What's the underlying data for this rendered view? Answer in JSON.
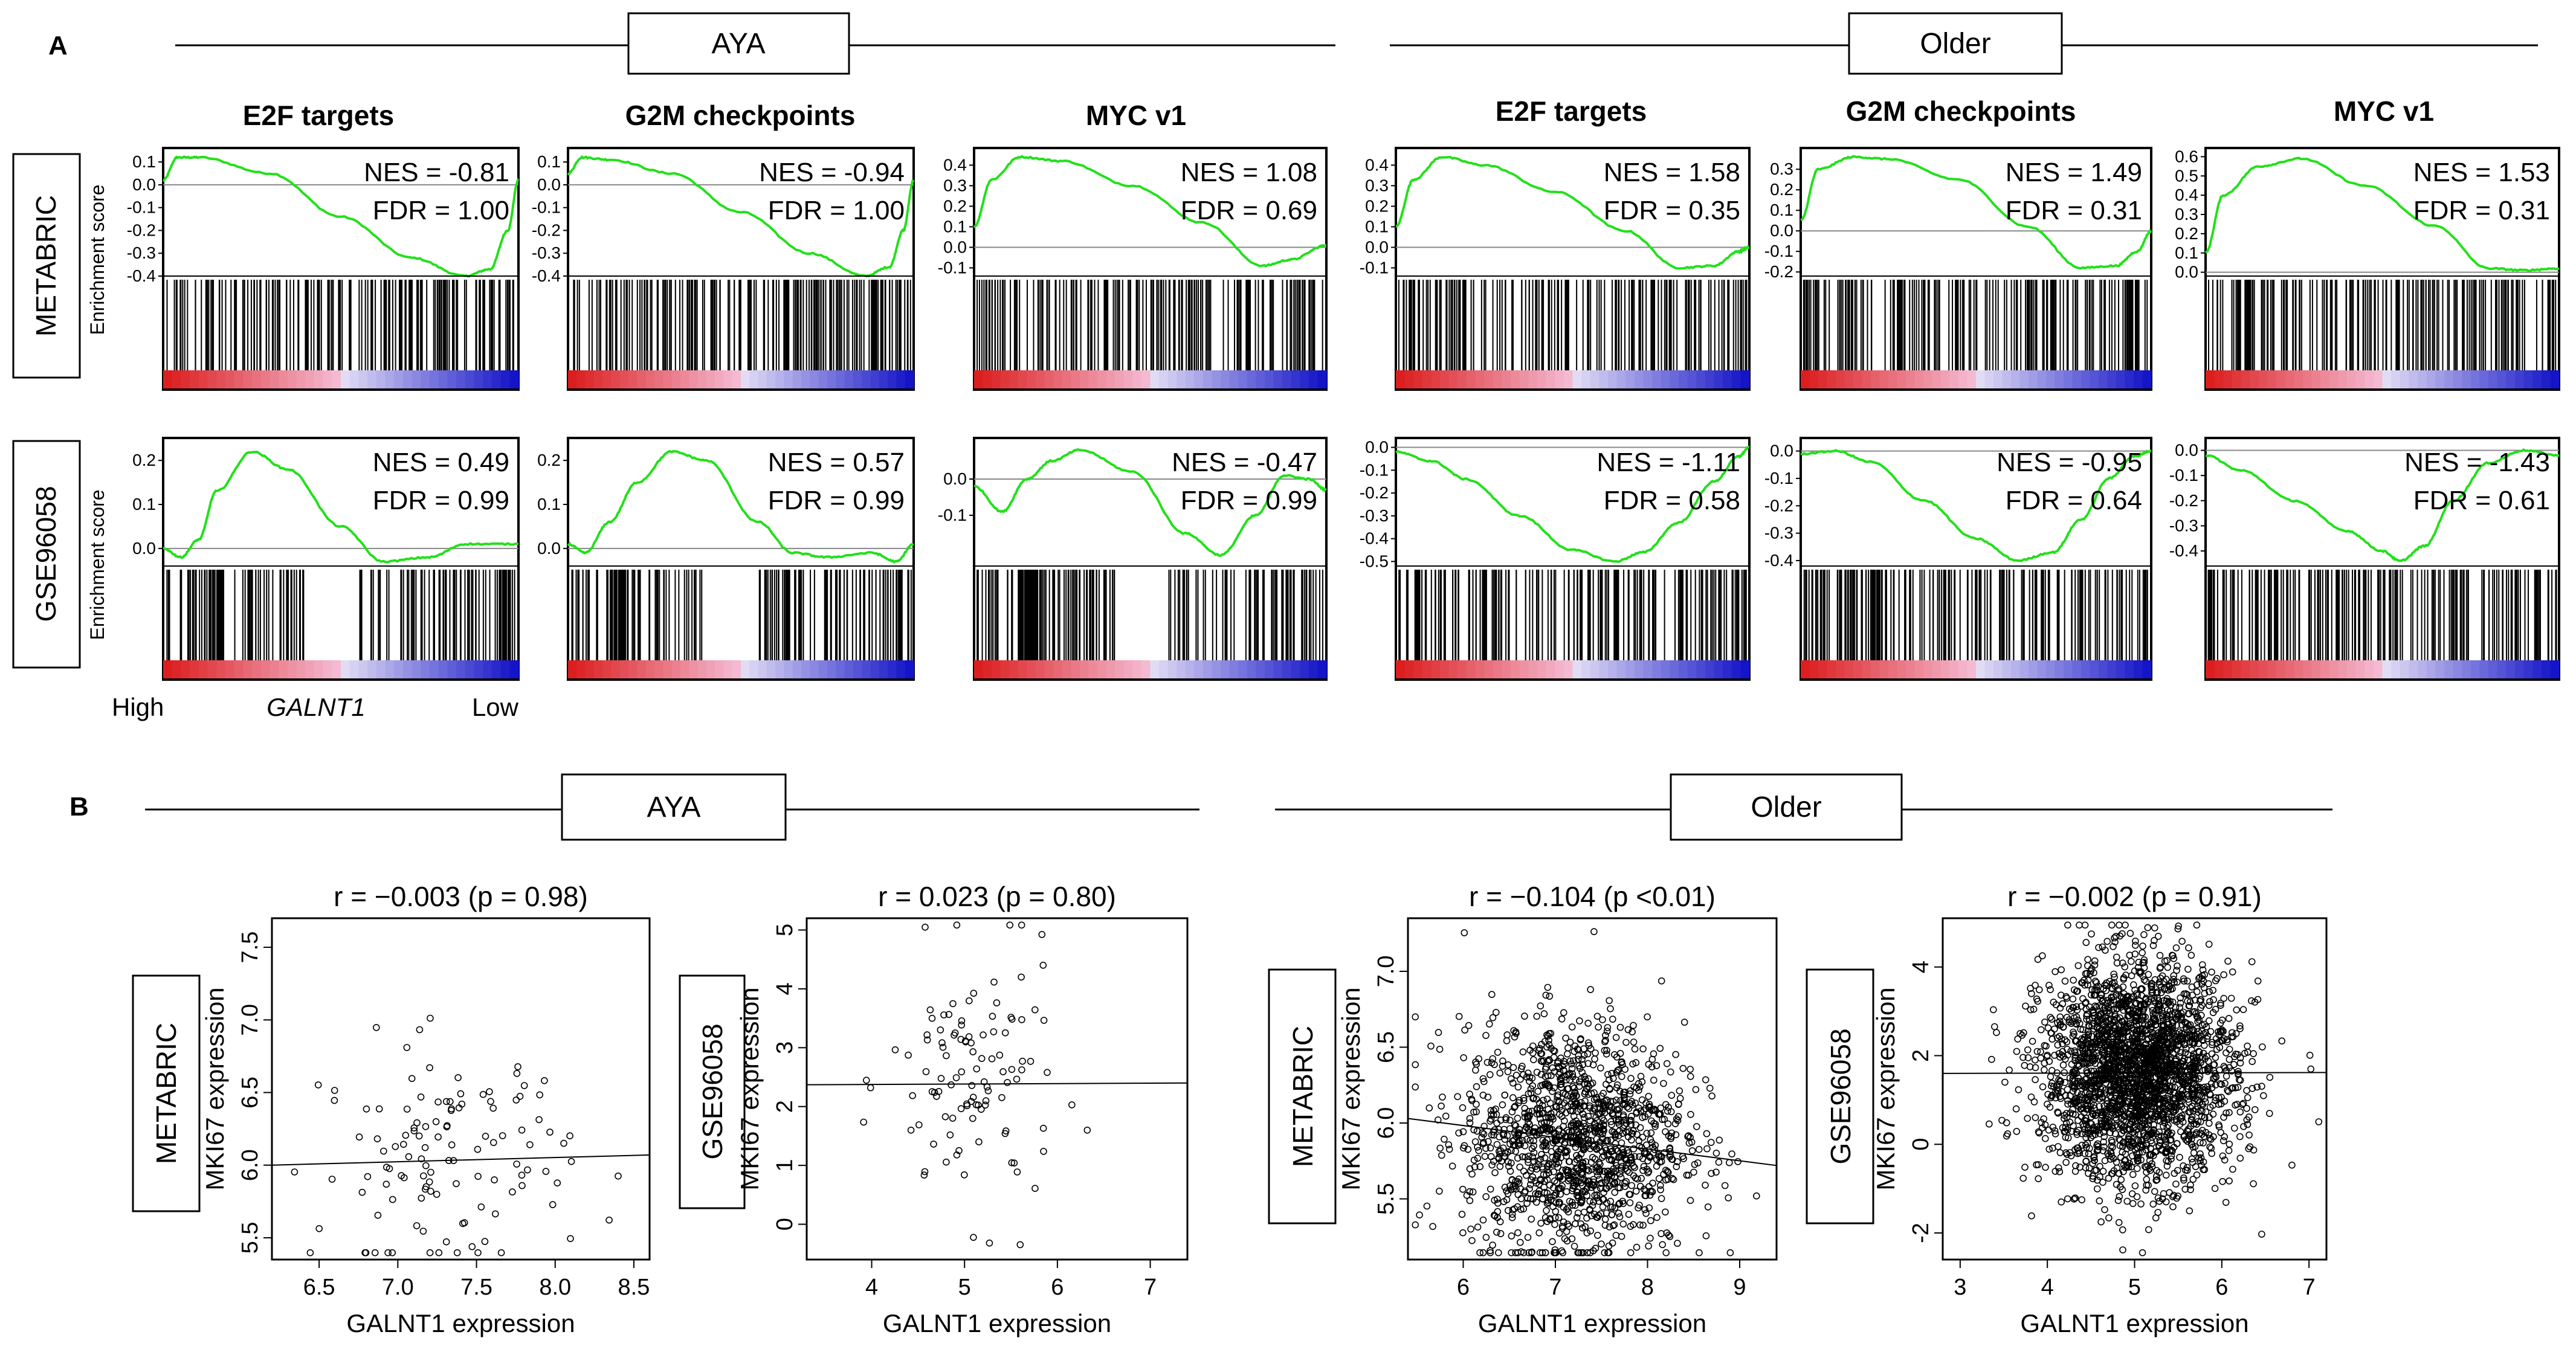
{
  "panel_a": {
    "label": "A",
    "groups": [
      "AYA",
      "Older"
    ],
    "gene_sets": [
      "E2F targets",
      "G2M checkpoints",
      "MYC v1"
    ],
    "datasets": [
      "METABRIC",
      "GSE96058"
    ],
    "ylabel": "Enrichment score",
    "axis_high": "High",
    "axis_gene": "GALNT1",
    "axis_low": "Low"
  },
  "panel_b": {
    "label": "B",
    "groups": [
      "AYA",
      "Older"
    ],
    "datasets": [
      "METABRIC",
      "GSE96058"
    ]
  },
  "chart_data": [
    {
      "type": "line",
      "panel": "A",
      "group": "AYA",
      "dataset": "METABRIC",
      "title": "E2F targets",
      "nes": "NES = -0.81",
      "fdr": "FDR =  1.00",
      "yticks": [
        "0.1",
        "0.0",
        "-0.1",
        "-0.2",
        "-0.3",
        "-0.4"
      ],
      "ylim": [
        -0.4,
        0.14
      ],
      "curve": [
        [
          0,
          0.02
        ],
        [
          0.04,
          0.12
        ],
        [
          0.1,
          0.12
        ],
        [
          0.3,
          0.05
        ],
        [
          0.5,
          -0.14
        ],
        [
          0.7,
          -0.32
        ],
        [
          0.85,
          -0.4
        ],
        [
          0.92,
          -0.37
        ],
        [
          0.97,
          -0.2
        ],
        [
          1,
          0.02
        ]
      ]
    },
    {
      "type": "line",
      "panel": "A",
      "group": "AYA",
      "dataset": "METABRIC",
      "title": "G2M checkpoints",
      "nes": "NES = -0.94",
      "fdr": "FDR =  1.00",
      "yticks": [
        "0.1",
        "0.0",
        "-0.1",
        "-0.2",
        "-0.3",
        "-0.4"
      ],
      "ylim": [
        -0.4,
        0.14
      ],
      "curve": [
        [
          0,
          0.05
        ],
        [
          0.04,
          0.12
        ],
        [
          0.12,
          0.11
        ],
        [
          0.3,
          0.05
        ],
        [
          0.5,
          -0.12
        ],
        [
          0.7,
          -0.3
        ],
        [
          0.86,
          -0.4
        ],
        [
          0.93,
          -0.36
        ],
        [
          0.97,
          -0.2
        ],
        [
          1,
          0.02
        ]
      ]
    },
    {
      "type": "line",
      "panel": "A",
      "group": "AYA",
      "dataset": "METABRIC",
      "title": "MYC v1",
      "nes": "NES = 1.08",
      "fdr": "FDR = 0.69",
      "yticks": [
        "0.4",
        "0.3",
        "0.2",
        "0.1",
        "0.0",
        "-0.1"
      ],
      "ylim": [
        -0.14,
        0.46
      ],
      "curve": [
        [
          0,
          0.1
        ],
        [
          0.05,
          0.33
        ],
        [
          0.13,
          0.44
        ],
        [
          0.25,
          0.42
        ],
        [
          0.45,
          0.3
        ],
        [
          0.65,
          0.12
        ],
        [
          0.82,
          -0.09
        ],
        [
          0.9,
          -0.06
        ],
        [
          1,
          0.01
        ]
      ]
    },
    {
      "type": "line",
      "panel": "A",
      "group": "Older",
      "dataset": "METABRIC",
      "title": "E2F targets",
      "nes": "NES = 1.58",
      "fdr": "FDR = 0.35",
      "yticks": [
        "0.4",
        "0.3",
        "0.2",
        "0.1",
        "0.0",
        "-0.1"
      ],
      "ylim": [
        -0.14,
        0.46
      ],
      "curve": [
        [
          0,
          0.1
        ],
        [
          0.05,
          0.33
        ],
        [
          0.13,
          0.44
        ],
        [
          0.25,
          0.4
        ],
        [
          0.45,
          0.27
        ],
        [
          0.65,
          0.08
        ],
        [
          0.8,
          -0.1
        ],
        [
          0.9,
          -0.09
        ],
        [
          0.97,
          -0.02
        ],
        [
          1,
          0
        ]
      ]
    },
    {
      "type": "line",
      "panel": "A",
      "group": "Older",
      "dataset": "METABRIC",
      "title": "G2M checkpoints",
      "nes": "NES = 1.49",
      "fdr": "FDR = 0.31",
      "yticks": [
        "0.3",
        "0.2",
        "0.1",
        "0.0",
        "-0.1",
        "-0.2"
      ],
      "ylim": [
        -0.22,
        0.38
      ],
      "curve": [
        [
          0,
          0.05
        ],
        [
          0.05,
          0.3
        ],
        [
          0.15,
          0.36
        ],
        [
          0.25,
          0.35
        ],
        [
          0.45,
          0.25
        ],
        [
          0.65,
          0.02
        ],
        [
          0.8,
          -0.18
        ],
        [
          0.9,
          -0.17
        ],
        [
          0.96,
          -0.1
        ],
        [
          1,
          0
        ]
      ]
    },
    {
      "type": "line",
      "panel": "A",
      "group": "Older",
      "dataset": "METABRIC",
      "title": "MYC v1",
      "nes": "NES = 1.53",
      "fdr": "FDR = 0.31",
      "yticks": [
        "0.6",
        "0.5",
        "0.4",
        "0.3",
        "0.2",
        "0.1",
        "0.0"
      ],
      "ylim": [
        -0.02,
        0.62
      ],
      "curve": [
        [
          0,
          0.1
        ],
        [
          0.05,
          0.4
        ],
        [
          0.15,
          0.55
        ],
        [
          0.27,
          0.59
        ],
        [
          0.45,
          0.45
        ],
        [
          0.65,
          0.24
        ],
        [
          0.8,
          0.02
        ],
        [
          0.9,
          0.01
        ],
        [
          1,
          0.02
        ]
      ]
    },
    {
      "type": "line",
      "panel": "A",
      "group": "AYA",
      "dataset": "GSE96058",
      "title": "",
      "nes": "NES = 0.49",
      "fdr": "FDR = 0.99",
      "yticks": [
        "0.2",
        "0.1",
        "0.0"
      ],
      "ylim": [
        -0.04,
        0.24
      ],
      "curve": [
        [
          0,
          0
        ],
        [
          0.05,
          -0.02
        ],
        [
          0.1,
          0.02
        ],
        [
          0.15,
          0.13
        ],
        [
          0.25,
          0.22
        ],
        [
          0.35,
          0.18
        ],
        [
          0.5,
          0.05
        ],
        [
          0.62,
          -0.03
        ],
        [
          0.75,
          -0.02
        ],
        [
          0.85,
          0.01
        ],
        [
          1,
          0.01
        ]
      ]
    },
    {
      "type": "line",
      "panel": "A",
      "group": "AYA",
      "dataset": "GSE96058",
      "title": "",
      "nes": "NES = 0.57",
      "fdr": "FDR = 0.99",
      "yticks": [
        "0.2",
        "0.1",
        "0.0"
      ],
      "ylim": [
        -0.04,
        0.24
      ],
      "curve": [
        [
          0,
          0.01
        ],
        [
          0.05,
          -0.01
        ],
        [
          0.12,
          0.06
        ],
        [
          0.2,
          0.15
        ],
        [
          0.3,
          0.22
        ],
        [
          0.4,
          0.2
        ],
        [
          0.55,
          0.06
        ],
        [
          0.65,
          -0.01
        ],
        [
          0.75,
          -0.02
        ],
        [
          0.88,
          -0.01
        ],
        [
          0.95,
          -0.03
        ],
        [
          1,
          0.01
        ]
      ]
    },
    {
      "type": "line",
      "panel": "A",
      "group": "AYA",
      "dataset": "GSE96058",
      "title": "",
      "nes": "NES = -0.47",
      "fdr": "FDR = 0.99",
      "yticks": [
        "0.0",
        "-0.1"
      ],
      "ylim": [
        -0.24,
        0.1
      ],
      "curve": [
        [
          0,
          -0.02
        ],
        [
          0.08,
          -0.09
        ],
        [
          0.15,
          0.0
        ],
        [
          0.22,
          0.05
        ],
        [
          0.3,
          0.08
        ],
        [
          0.45,
          0.02
        ],
        [
          0.6,
          -0.15
        ],
        [
          0.7,
          -0.21
        ],
        [
          0.8,
          -0.1
        ],
        [
          0.88,
          0.01
        ],
        [
          0.95,
          0.0
        ],
        [
          1,
          -0.03
        ]
      ]
    },
    {
      "type": "line",
      "panel": "A",
      "group": "Older",
      "dataset": "GSE96058",
      "title": "",
      "nes": "NES = -1.11",
      "fdr": "FDR =  0.58",
      "yticks": [
        "0.0",
        "-0.1",
        "-0.2",
        "-0.3",
        "-0.4",
        "-0.5"
      ],
      "ylim": [
        -0.52,
        0.02
      ],
      "curve": [
        [
          0,
          -0.02
        ],
        [
          0.1,
          -0.06
        ],
        [
          0.2,
          -0.14
        ],
        [
          0.35,
          -0.3
        ],
        [
          0.5,
          -0.45
        ],
        [
          0.62,
          -0.5
        ],
        [
          0.7,
          -0.46
        ],
        [
          0.8,
          -0.33
        ],
        [
          0.9,
          -0.15
        ],
        [
          0.97,
          -0.04
        ],
        [
          1,
          0
        ]
      ]
    },
    {
      "type": "line",
      "panel": "A",
      "group": "Older",
      "dataset": "GSE96058",
      "title": "",
      "nes": "NES = -0.95",
      "fdr": "FDR =  0.64",
      "yticks": [
        "0.0",
        "-0.1",
        "-0.2",
        "-0.3",
        "-0.4"
      ],
      "ylim": [
        -0.42,
        0.03
      ],
      "curve": [
        [
          0,
          -0.01
        ],
        [
          0.1,
          0.0
        ],
        [
          0.2,
          -0.04
        ],
        [
          0.35,
          -0.18
        ],
        [
          0.5,
          -0.32
        ],
        [
          0.62,
          -0.4
        ],
        [
          0.72,
          -0.37
        ],
        [
          0.8,
          -0.25
        ],
        [
          0.88,
          -0.1
        ],
        [
          0.95,
          -0.02
        ],
        [
          1,
          0.0
        ]
      ]
    },
    {
      "type": "line",
      "panel": "A",
      "group": "Older",
      "dataset": "GSE96058",
      "title": "",
      "nes": "NES = -1.43",
      "fdr": "FDR = 0.61",
      "yticks": [
        "0.0",
        "-0.1",
        "-0.2",
        "-0.3",
        "-0.4"
      ],
      "ylim": [
        -0.46,
        0.03
      ],
      "curve": [
        [
          0,
          -0.02
        ],
        [
          0.1,
          -0.08
        ],
        [
          0.25,
          -0.2
        ],
        [
          0.4,
          -0.32
        ],
        [
          0.5,
          -0.4
        ],
        [
          0.55,
          -0.44
        ],
        [
          0.62,
          -0.38
        ],
        [
          0.7,
          -0.2
        ],
        [
          0.8,
          -0.05
        ],
        [
          0.9,
          0.0
        ],
        [
          1,
          -0.02
        ]
      ]
    },
    {
      "type": "scatter",
      "panel": "B",
      "group": "AYA",
      "dataset": "METABRIC",
      "title_stat": "r = −0.003 (p = 0.98)",
      "xlabel": "GALNT1 expression",
      "ylabel": "MKI67 expression",
      "xlim": [
        6.2,
        8.6
      ],
      "ylim": [
        5.35,
        7.7
      ],
      "xticks": [
        "6.5",
        "7.0",
        "7.5",
        "8.0",
        "8.5"
      ],
      "yticks": [
        "5.5",
        "6.0",
        "6.5",
        "7.0",
        "7.5"
      ],
      "n": 120,
      "x_mean": 7.3,
      "x_sd": 0.4,
      "y_mean": 6.05,
      "y_sd": 0.4,
      "fit": [
        [
          6.2,
          6.0
        ],
        [
          8.6,
          6.07
        ]
      ]
    },
    {
      "type": "scatter",
      "panel": "B",
      "group": "AYA",
      "dataset": "GSE96058",
      "title_stat": "r = 0.023 (p = 0.80)",
      "xlabel": "GALNT1 expression",
      "ylabel": "MKI67 expression",
      "xlim": [
        3.3,
        7.4
      ],
      "ylim": [
        -0.6,
        5.2
      ],
      "xticks": [
        "4",
        "5",
        "6",
        "7"
      ],
      "yticks": [
        "0",
        "1",
        "2",
        "3",
        "4",
        "5"
      ],
      "n": 110,
      "x_mean": 5.1,
      "x_sd": 0.45,
      "y_mean": 2.4,
      "y_sd": 1.1,
      "fit": [
        [
          3.3,
          2.37
        ],
        [
          7.4,
          2.4
        ]
      ]
    },
    {
      "type": "scatter",
      "panel": "B",
      "group": "Older",
      "dataset": "METABRIC",
      "title_stat": "r = −0.104 (p <0.01)",
      "xlabel": "GALNT1 expression",
      "ylabel": "MKI67 expression",
      "xlim": [
        5.4,
        9.4
      ],
      "ylim": [
        5.1,
        7.35
      ],
      "xticks": [
        "6",
        "7",
        "8",
        "9"
      ],
      "yticks": [
        "5.5",
        "6.0",
        "6.5",
        "7.0"
      ],
      "n": 1400,
      "x_mean": 7.2,
      "x_sd": 0.6,
      "y_mean": 5.9,
      "y_sd": 0.38,
      "fit": [
        [
          5.4,
          6.03
        ],
        [
          9.4,
          5.72
        ]
      ]
    },
    {
      "type": "scatter",
      "panel": "B",
      "group": "Older",
      "dataset": "GSE96058",
      "title_stat": "r = −0.002 (p = 0.91)",
      "xlabel": "GALNT1 expression",
      "ylabel": "MKI67 expression",
      "xlim": [
        2.8,
        7.2
      ],
      "ylim": [
        -2.6,
        5.1
      ],
      "xticks": [
        "3",
        "4",
        "5",
        "6",
        "7"
      ],
      "yticks": [
        "-2",
        "0",
        "2",
        "4"
      ],
      "n": 2600,
      "x_mean": 5.05,
      "x_sd": 0.55,
      "y_mean": 1.6,
      "y_sd": 1.2,
      "fit": [
        [
          2.8,
          1.6
        ],
        [
          7.2,
          1.62
        ]
      ]
    }
  ]
}
